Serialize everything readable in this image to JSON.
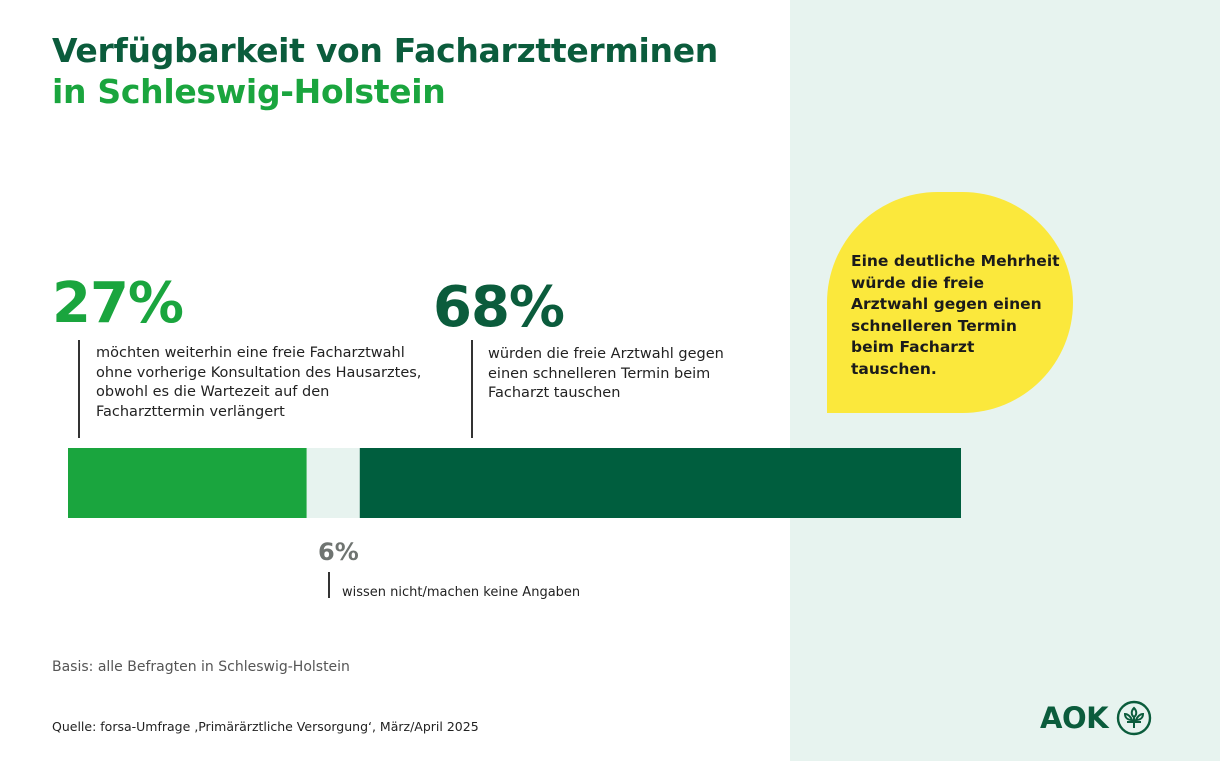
{
  "header": {
    "title_line1": "Verfügbarkeit von Facharztterminen",
    "title_line2": "in Schleswig-Holstein"
  },
  "chart_data": {
    "type": "bar",
    "orientation": "horizontal-stacked",
    "categories": [
      "freie Facharztwahl",
      "weiß nicht/keine Angabe",
      "schnellerer Termin"
    ],
    "series": [
      {
        "name": "möchten weiterhin eine freie Facharztwahl ohne vorherige Konsultation des Hausarztes, obwohl es die Wartezeit auf den Facharzttermin verlängert",
        "value": 27,
        "label": "27%",
        "color": "#1aa53e"
      },
      {
        "name": "wissen nicht/machen keine Angaben",
        "value": 6,
        "label": "6%",
        "color": "#e7f3ef"
      },
      {
        "name": "würden die freie Arztwahl gegen einen schnelleren Termin beim Facharzt tauschen",
        "value": 68,
        "label": "68%",
        "color": "#005e3e"
      }
    ],
    "unit": "%"
  },
  "labels": {
    "pct_27": "27%",
    "pct_68": "68%",
    "pct_6": "6%",
    "desc_27": "möchten weiterhin eine freie Facharztwahl ohne vorherige Konsultation des Hausarztes, obwohl es die Wartezeit auf den Facharzttermin verlängert",
    "desc_68": "würden die freie Arztwahl gegen einen schnelleren Termin beim Facharzt tauschen",
    "desc_6": "wissen nicht/machen keine Angaben"
  },
  "callout": {
    "text": "Eine deutliche Mehrheit würde die freie Arztwahl gegen einen schnelleren Termin beim Facharzt tauschen."
  },
  "footer": {
    "basis": "Basis: alle Befragten in Schleswig-Holstein",
    "source": "Quelle: forsa-Umfrage ‚Primärärztliche Versorgung‘, März/April 2025"
  },
  "brand": {
    "logo_text": "AOK",
    "logo_icon": "aok-tree-icon",
    "color_dark_green": "#0b5c3c",
    "color_light_green": "#1aa53e",
    "color_yellow": "#fbe83c"
  }
}
